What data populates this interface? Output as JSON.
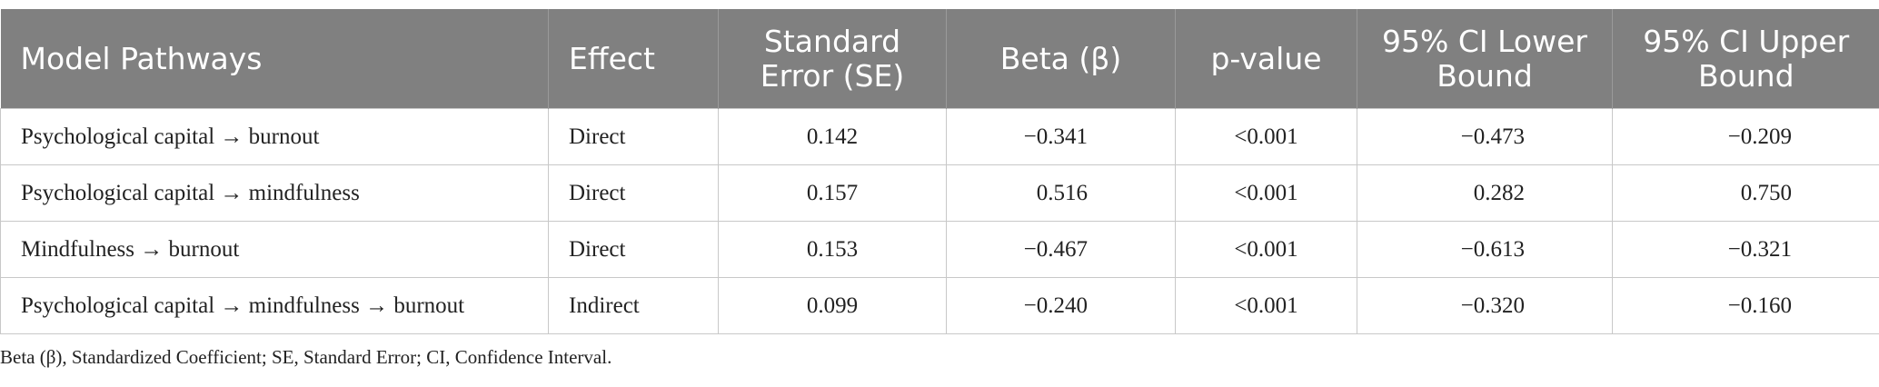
{
  "table": {
    "header": [
      "Model Pathways",
      "Effect",
      "Standard Error (SE)",
      "Beta (β)",
      "p-value",
      "95% CI Lower Bound",
      "95% CI Upper Bound"
    ],
    "rows": [
      [
        "Psychological capital → burnout",
        "Direct",
        "0.142",
        "−0.341",
        "<0.001",
        "−0.473",
        "−0.209"
      ],
      [
        "Psychological capital → mindfulness",
        "Direct",
        "0.157",
        "0.516",
        "<0.001",
        "0.282",
        "0.750"
      ],
      [
        "Mindfulness → burnout",
        "Direct",
        "0.153",
        "−0.467",
        "<0.001",
        "−0.613",
        "−0.321"
      ],
      [
        "Psychological capital → mindfulness → burnout",
        "Indirect",
        "0.099",
        "−0.240",
        "<0.001",
        "−0.320",
        "−0.160"
      ]
    ],
    "footnote": "Beta (β), Standardized Coefficient; SE, Standard Error; CI, Confidence Interval."
  }
}
